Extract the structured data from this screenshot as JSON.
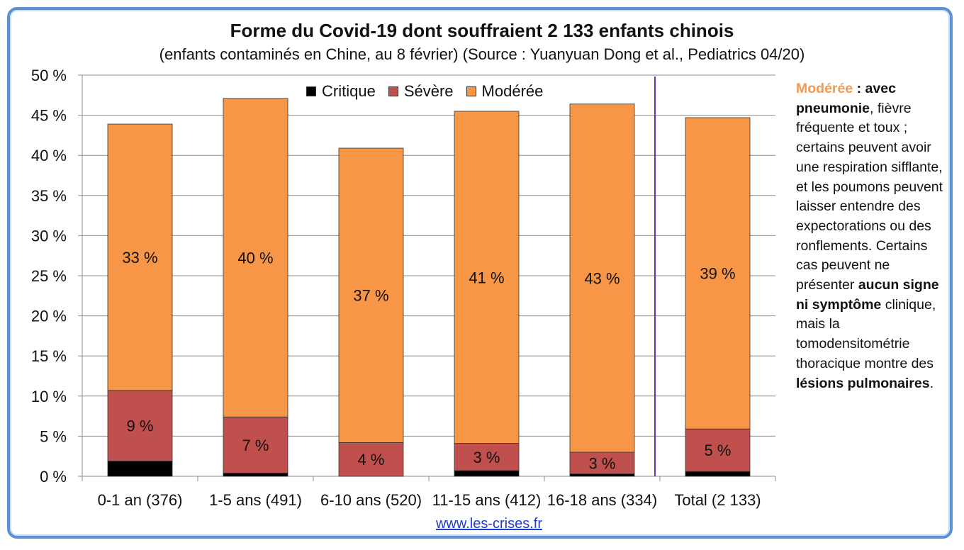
{
  "title": "Forme du Covid-19 dont souffraient 2 133 enfants chinois",
  "subtitle": "(enfants contaminés en Chine, au 8 février) (Source : Yuanyuan Dong et al., Pediatrics 04/20)",
  "source_link": "www.les-crises.fr",
  "side_note": {
    "p1": "Modérée",
    "p2": " : ",
    "p3": "avec pneumonie",
    "p4": ", fièvre fréquente et toux ; certains peuvent avoir une respiration sifflante, et les poumons peuvent laisser entendre des expectorations ou des ronflements. Certains cas peuvent ne présenter ",
    "p5": "aucun signe ni symptôme",
    "p6": " clinique, mais la tomodensitométrie thoracique montre des ",
    "p7": "lésions pulmonaires",
    "p8": "."
  },
  "chart_data": {
    "type": "bar",
    "stacked": true,
    "categories": [
      "0-1 an (376)",
      "1-5 ans (491)",
      "6-10 ans (520)",
      "11-15 ans (412)",
      "16-18 ans (334)",
      "Total (2 133)"
    ],
    "series": [
      {
        "name": "Critique",
        "color": "#000000",
        "values": [
          1.9,
          0.4,
          0.0,
          0.7,
          0.3,
          0.6
        ],
        "labels": [
          "",
          "",
          "",
          "",
          "",
          ""
        ]
      },
      {
        "name": "Sévère",
        "color": "#c0504d",
        "values": [
          8.8,
          7.0,
          4.2,
          3.4,
          2.7,
          5.3
        ],
        "labels": [
          "9 %",
          "7 %",
          "4 %",
          "3 %",
          "3 %",
          "5 %"
        ]
      },
      {
        "name": "Modérée",
        "color": "#f79646",
        "values": [
          33.2,
          39.7,
          36.7,
          41.4,
          43.4,
          38.8
        ],
        "labels": [
          "33 %",
          "40 %",
          "37 %",
          "41 %",
          "43 %",
          "39 %"
        ]
      }
    ],
    "yticks": [
      "0 %",
      "5 %",
      "10 %",
      "15 %",
      "20 %",
      "25 %",
      "30 %",
      "35 %",
      "40 %",
      "45 %",
      "50 %"
    ],
    "ylim": [
      0,
      50
    ],
    "legend_position": "top",
    "separator_before_category": 5,
    "separator_color": "#7030a0"
  }
}
